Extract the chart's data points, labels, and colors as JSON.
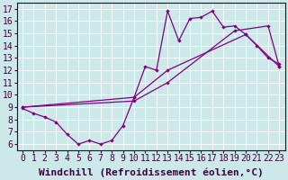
{
  "xlabel": "Windchill (Refroidissement éolien,°C)",
  "background_color": "#cce8e8",
  "line_color": "#800080",
  "xlim": [
    -0.5,
    23.5
  ],
  "ylim": [
    5.5,
    17.5
  ],
  "xticks": [
    0,
    1,
    2,
    3,
    4,
    5,
    6,
    7,
    8,
    9,
    10,
    11,
    12,
    13,
    14,
    15,
    16,
    17,
    18,
    19,
    20,
    21,
    22,
    23
  ],
  "yticks": [
    6,
    7,
    8,
    9,
    10,
    11,
    12,
    13,
    14,
    15,
    16,
    17
  ],
  "curve1_x": [
    0,
    1,
    2,
    3,
    4,
    5,
    6,
    7,
    8,
    9,
    10,
    11,
    12,
    13,
    14,
    15,
    16,
    17,
    18,
    19,
    20,
    21,
    22,
    23
  ],
  "curve1_y": [
    8.9,
    8.5,
    8.2,
    7.8,
    6.8,
    6.0,
    6.3,
    6.0,
    6.3,
    7.5,
    9.8,
    12.3,
    12.0,
    16.8,
    14.4,
    16.2,
    16.3,
    16.8,
    15.5,
    15.6,
    14.9,
    14.0,
    13.0,
    12.5
  ],
  "curve2_x": [
    0,
    10,
    13,
    20,
    23
  ],
  "curve2_y": [
    9.0,
    9.8,
    12.0,
    14.9,
    12.3
  ],
  "curve3_x": [
    0,
    10,
    13,
    19,
    22,
    23
  ],
  "curve3_y": [
    9.0,
    9.5,
    11.0,
    15.2,
    15.6,
    12.3
  ],
  "grid_color": "#b0d0d0",
  "tick_fontsize": 7,
  "xlabel_fontsize": 8,
  "figsize": [
    3.2,
    2.0
  ],
  "dpi": 100
}
